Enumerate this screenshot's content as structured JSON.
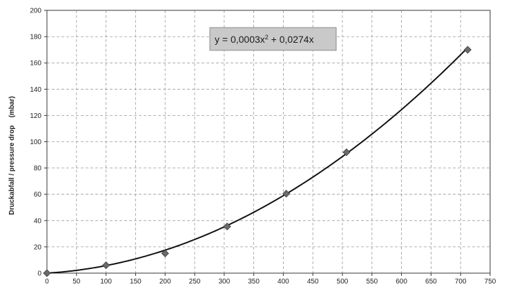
{
  "chart_data": {
    "type": "scatter",
    "title": "",
    "xlabel": "",
    "ylabel": "Druckabfall / pressure drop    (mbar)",
    "xlim": [
      0,
      750
    ],
    "ylim": [
      0,
      200
    ],
    "x_ticks": [
      0,
      50,
      100,
      150,
      200,
      250,
      300,
      350,
      400,
      450,
      500,
      550,
      600,
      650,
      700,
      750
    ],
    "y_ticks": [
      0,
      20,
      40,
      60,
      80,
      100,
      120,
      140,
      160,
      180,
      200
    ],
    "grid": true,
    "series": [
      {
        "marker": "diamond",
        "color": "#6b6b6b",
        "x": [
          0,
          100,
          200,
          305,
          405,
          507,
          712
        ],
        "y": [
          0,
          6,
          15,
          35.5,
          60.5,
          92,
          170
        ]
      }
    ],
    "trendline": {
      "type": "polynomial",
      "a": 0.0003,
      "b": 0.0274,
      "c": 0,
      "color": "#111111",
      "equation_parts": {
        "prefix": "y = 0,0003x",
        "sup": "2",
        "suffix": " + 0,0274x"
      },
      "box_color": "#c9c9c9"
    }
  }
}
